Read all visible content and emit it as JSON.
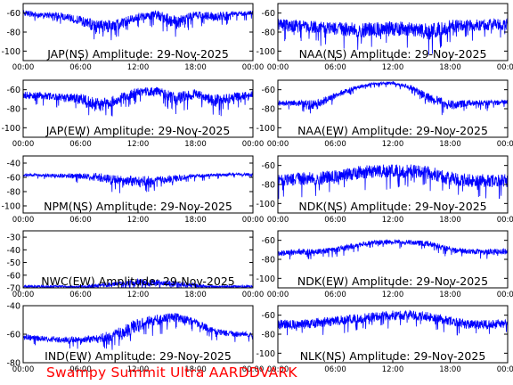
{
  "footer": "Swampy Summit Ultra AARDDVARK",
  "colors": {
    "trace": "#0000ff",
    "axis": "#000000",
    "footer": "#ff0000"
  },
  "chart_data": [
    {
      "type": "line",
      "title": "JAP(NS) Amplitude: 29-Nov-2025",
      "x_ticks": [
        "00:00",
        "06:00",
        "12:00",
        "18:00",
        "00:00"
      ],
      "y_ticks": [
        -60,
        -80,
        -100
      ],
      "ylim": [
        -110,
        -50
      ],
      "series": [
        {
          "x": [
            "00:00",
            "02:00",
            "04:00",
            "06:00",
            "08:00",
            "10:00",
            "12:00",
            "14:00",
            "16:00",
            "18:00",
            "20:00",
            "22:00",
            "24:00"
          ],
          "values": [
            -60,
            -62,
            -63,
            -68,
            -75,
            -72,
            -64,
            -62,
            -70,
            -62,
            -64,
            -61,
            -60
          ],
          "spread": [
            6,
            6,
            7,
            10,
            14,
            12,
            8,
            10,
            14,
            8,
            10,
            6,
            5
          ]
        }
      ]
    },
    {
      "type": "line",
      "title": "NAA(NS) Amplitude: 29-Nov-2025",
      "x_ticks": [
        "00:00",
        "06:00",
        "12:00",
        "18:00",
        "00:00"
      ],
      "y_ticks": [
        -60,
        -80,
        -100
      ],
      "ylim": [
        -110,
        -50
      ],
      "series": [
        {
          "x": [
            "00:00",
            "02:00",
            "04:00",
            "06:00",
            "08:00",
            "10:00",
            "12:00",
            "14:00",
            "16:00",
            "18:00",
            "20:00",
            "22:00",
            "24:00"
          ],
          "values": [
            -72,
            -74,
            -75,
            -76,
            -78,
            -78,
            -76,
            -77,
            -80,
            -74,
            -73,
            -72,
            -72
          ],
          "spread": [
            12,
            14,
            14,
            14,
            16,
            16,
            16,
            14,
            18,
            14,
            12,
            12,
            12
          ]
        }
      ]
    },
    {
      "type": "line",
      "title": "JAP(EW) Amplitude: 29-Nov-2025",
      "x_ticks": [
        "00:00",
        "06:00",
        "12:00",
        "18:00",
        "00:00"
      ],
      "y_ticks": [
        -60,
        -80,
        -100
      ],
      "ylim": [
        -110,
        -50
      ],
      "series": [
        {
          "x": [
            "00:00",
            "02:00",
            "04:00",
            "06:00",
            "08:00",
            "10:00",
            "12:00",
            "14:00",
            "16:00",
            "18:00",
            "20:00",
            "22:00",
            "24:00"
          ],
          "values": [
            -66,
            -66,
            -68,
            -70,
            -78,
            -70,
            -62,
            -62,
            -70,
            -64,
            -72,
            -68,
            -64
          ],
          "spread": [
            8,
            8,
            8,
            12,
            16,
            12,
            8,
            10,
            14,
            10,
            14,
            10,
            8
          ]
        }
      ]
    },
    {
      "type": "line",
      "title": "NAA(EW) Amplitude: 29-Nov-2025",
      "x_ticks": [
        "00:00",
        "06:00",
        "12:00",
        "18:00",
        "00:00"
      ],
      "y_ticks": [
        -60,
        -80,
        -100
      ],
      "ylim": [
        -110,
        -50
      ],
      "series": [
        {
          "x": [
            "00:00",
            "02:00",
            "04:00",
            "06:00",
            "08:00",
            "10:00",
            "12:00",
            "14:00",
            "16:00",
            "18:00",
            "20:00",
            "22:00",
            "24:00"
          ],
          "values": [
            -74,
            -74,
            -76,
            -66,
            -58,
            -54,
            -53,
            -58,
            -70,
            -76,
            -74,
            -74,
            -73
          ],
          "spread": [
            6,
            6,
            10,
            6,
            4,
            3,
            3,
            6,
            10,
            10,
            6,
            6,
            5
          ]
        }
      ]
    },
    {
      "type": "line",
      "title": "NPM(NS) Amplitude: 29-Nov-2025",
      "x_ticks": [
        "00:00",
        "06:00",
        "12:00",
        "18:00",
        "00:00"
      ],
      "y_ticks": [
        -40,
        -60,
        -80,
        -100
      ],
      "ylim": [
        -110,
        -30
      ],
      "series": [
        {
          "x": [
            "00:00",
            "02:00",
            "04:00",
            "06:00",
            "08:00",
            "10:00",
            "12:00",
            "14:00",
            "16:00",
            "18:00",
            "20:00",
            "22:00",
            "24:00"
          ],
          "values": [
            -57,
            -57,
            -58,
            -58,
            -60,
            -64,
            -66,
            -64,
            -62,
            -58,
            -57,
            -56,
            -56
          ],
          "spread": [
            4,
            4,
            6,
            8,
            12,
            14,
            16,
            12,
            10,
            6,
            4,
            4,
            4
          ]
        }
      ]
    },
    {
      "type": "line",
      "title": "NDK(NS) Amplitude: 29-Nov-2025",
      "x_ticks": [
        "00:00",
        "06:00",
        "12:00",
        "18:00",
        "00:00"
      ],
      "y_ticks": [
        -60,
        -80,
        -100
      ],
      "ylim": [
        -110,
        -50
      ],
      "series": [
        {
          "x": [
            "00:00",
            "02:00",
            "04:00",
            "06:00",
            "08:00",
            "10:00",
            "12:00",
            "14:00",
            "16:00",
            "18:00",
            "20:00",
            "22:00",
            "24:00"
          ],
          "values": [
            -76,
            -74,
            -74,
            -72,
            -68,
            -66,
            -66,
            -66,
            -68,
            -74,
            -76,
            -76,
            -76
          ],
          "spread": [
            14,
            14,
            14,
            14,
            14,
            14,
            14,
            14,
            14,
            14,
            14,
            14,
            14
          ]
        }
      ]
    },
    {
      "type": "line",
      "title": "NWC(EW) Amplitude: 29-Nov-2025",
      "x_ticks": [
        "00:00",
        "06:00",
        "12:00",
        "18:00",
        "00:00"
      ],
      "y_ticks": [
        -30,
        -40,
        -50,
        -60,
        -70
      ],
      "ylim": [
        -70,
        -25
      ],
      "series": [
        {
          "x": [
            "00:00",
            "02:00",
            "04:00",
            "06:00",
            "08:00",
            "10:00",
            "12:00",
            "14:00",
            "16:00",
            "18:00",
            "20:00",
            "22:00",
            "24:00"
          ],
          "values": [
            -69,
            -69,
            -69,
            -69,
            -68,
            -67,
            -66,
            -66,
            -67,
            -68,
            -69,
            -69,
            -69
          ],
          "spread": [
            2,
            2,
            2,
            2,
            3,
            4,
            6,
            6,
            5,
            3,
            2,
            2,
            2
          ]
        }
      ]
    },
    {
      "type": "line",
      "title": "NDK(EW) Amplitude: 29-Nov-2025",
      "x_ticks": [
        "00:00",
        "06:00",
        "12:00",
        "18:00",
        "00:00"
      ],
      "y_ticks": [
        -60,
        -80,
        -100
      ],
      "ylim": [
        -110,
        -50
      ],
      "series": [
        {
          "x": [
            "00:00",
            "02:00",
            "04:00",
            "06:00",
            "08:00",
            "10:00",
            "12:00",
            "14:00",
            "16:00",
            "18:00",
            "20:00",
            "22:00",
            "24:00"
          ],
          "values": [
            -74,
            -72,
            -72,
            -70,
            -66,
            -62,
            -62,
            -62,
            -64,
            -70,
            -72,
            -72,
            -72
          ],
          "spread": [
            6,
            6,
            6,
            6,
            6,
            5,
            5,
            5,
            6,
            6,
            6,
            6,
            6
          ]
        }
      ]
    },
    {
      "type": "line",
      "title": "IND(EW) Amplitude: 29-Nov-2025",
      "x_ticks": [
        "00:00",
        "06:00",
        "12:00",
        "18:00",
        "00:00"
      ],
      "y_ticks": [
        -40,
        -60,
        -80
      ],
      "ylim": [
        -80,
        -40
      ],
      "series": [
        {
          "x": [
            "00:00",
            "02:00",
            "04:00",
            "06:00",
            "08:00",
            "10:00",
            "12:00",
            "14:00",
            "16:00",
            "18:00",
            "20:00",
            "22:00",
            "24:00"
          ],
          "values": [
            -62,
            -63,
            -64,
            -64,
            -63,
            -60,
            -54,
            -50,
            -48,
            -52,
            -58,
            -60,
            -60
          ],
          "spread": [
            4,
            4,
            4,
            5,
            6,
            10,
            10,
            8,
            6,
            6,
            5,
            4,
            4
          ]
        }
      ]
    },
    {
      "type": "line",
      "title": "NLK(NS) Amplitude: 29-Nov-2025",
      "x_ticks": [
        "00:00",
        "06:00",
        "12:00",
        "18:00",
        "00:00"
      ],
      "y_ticks": [
        -60,
        -80,
        -100
      ],
      "ylim": [
        -110,
        -50
      ],
      "series": [
        {
          "x": [
            "00:00",
            "02:00",
            "04:00",
            "06:00",
            "08:00",
            "10:00",
            "12:00",
            "14:00",
            "16:00",
            "18:00",
            "20:00",
            "22:00",
            "24:00"
          ],
          "values": [
            -70,
            -70,
            -68,
            -66,
            -64,
            -62,
            -60,
            -60,
            -62,
            -66,
            -70,
            -70,
            -70
          ],
          "spread": [
            10,
            10,
            10,
            10,
            10,
            10,
            10,
            10,
            10,
            10,
            10,
            10,
            10
          ]
        }
      ]
    }
  ]
}
